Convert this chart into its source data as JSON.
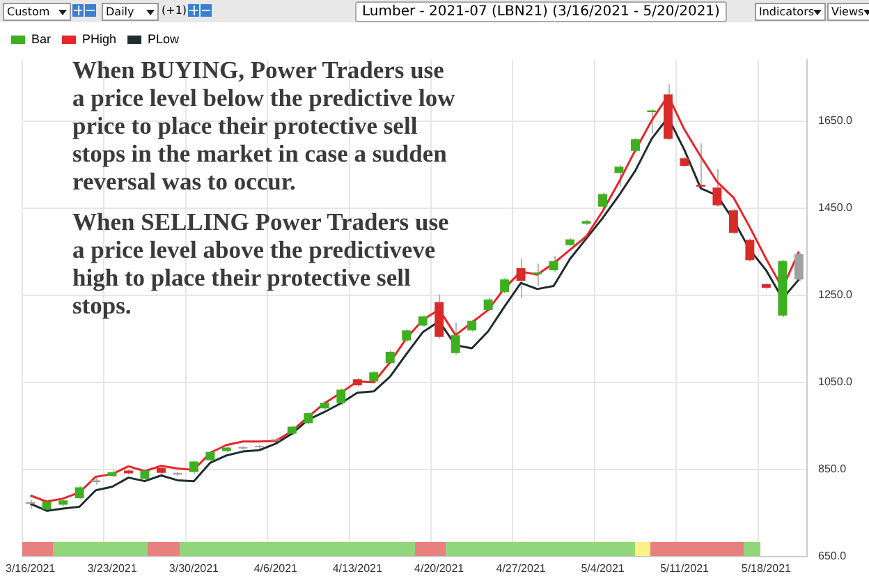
{
  "chart_data": {
    "type": "candlestick",
    "title": "Lumber - 2021-07 (LBN21) (3/16/2021 - 5/20/2021)",
    "annotations": [
      "When BUYING, Power Traders use a price level below the predictive low price to place their protective sell stops in the market in case a sudden reversal was to occur.",
      "When SELLING Power Traders use a price level above the predictiveve high to place their protective sell stops.",
      "Custom",
      "Daily",
      "(+1)",
      "Indicators",
      "Views"
    ],
    "categories": [
      "3/16/2021",
      null,
      null,
      null,
      null,
      "3/23/2021",
      null,
      null,
      null,
      null,
      "3/30/2021",
      null,
      null,
      null,
      null,
      "4/6/2021",
      null,
      null,
      null,
      null,
      "4/13/2021",
      null,
      null,
      null,
      null,
      "4/20/2021",
      null,
      null,
      null,
      null,
      "4/27/2021",
      null,
      null,
      null,
      null,
      "5/4/2021",
      null,
      null,
      null,
      null,
      "5/11/2021",
      null,
      null,
      null,
      null,
      "5/18/2021",
      null,
      null
    ],
    "series": [
      {
        "name": "Bar",
        "type": "candlestick",
        "colors": [
          "#a0a0a0",
          "#3cb01e",
          "#3cb01e",
          "#3cb01e",
          "#a0a0a0",
          "#3cb01e",
          "#d92a2a",
          "#3cb01e",
          "#d92a2a",
          "#a0a0a0",
          "#3cb01e",
          "#3cb01e",
          "#3cb01e",
          "#a0a0a0",
          "#a0a0a0",
          "#a0a0a0",
          "#3cb01e",
          "#3cb01e",
          "#3cb01e",
          "#3cb01e",
          "#d92a2a",
          "#3cb01e",
          "#3cb01e",
          "#3cb01e",
          "#3cb01e",
          "#d92a2a",
          "#3cb01e",
          "#3cb01e",
          "#3cb01e",
          "#3cb01e",
          "#d92a2a",
          "#3cb01e",
          "#3cb01e",
          "#3cb01e",
          "#3cb01e",
          "#3cb01e",
          "#3cb01e",
          "#3cb01e",
          "#3cb01e",
          "#d92a2a",
          "#d92a2a",
          "#d92a2a",
          "#d92a2a",
          "#d92a2a",
          "#d92a2a",
          "#d92a2a",
          "#3cb01e",
          "#a0a0a0"
        ],
        "ohlc": [
          [
            771,
            780,
            760,
            775
          ],
          [
            758,
            780,
            752,
            776
          ],
          [
            769,
            783,
            765,
            779
          ],
          [
            784,
            812,
            782,
            809
          ],
          [
            821,
            835,
            815,
            825
          ],
          [
            835,
            846,
            832,
            843
          ],
          [
            847,
            850,
            838,
            841
          ],
          [
            828,
            850,
            825,
            847
          ],
          [
            853,
            856,
            838,
            842
          ],
          [
            838,
            843,
            835,
            842
          ],
          [
            844,
            870,
            840,
            868
          ],
          [
            871,
            893,
            868,
            890
          ],
          [
            892,
            903,
            889,
            900
          ],
          [
            898,
            903,
            895,
            901
          ],
          [
            901,
            907,
            897,
            904
          ],
          [
            916,
            923,
            911,
            919
          ],
          [
            932,
            950,
            929,
            948
          ],
          [
            956,
            982,
            953,
            979
          ],
          [
            990,
            1006,
            987,
            1003
          ],
          [
            1002,
            1036,
            998,
            1033
          ],
          [
            1057,
            1060,
            1040,
            1043
          ],
          [
            1052,
            1076,
            1049,
            1073
          ],
          [
            1094,
            1123,
            1091,
            1120
          ],
          [
            1146,
            1172,
            1143,
            1169
          ],
          [
            1180,
            1204,
            1177,
            1201
          ],
          [
            1234,
            1252,
            1150,
            1154
          ],
          [
            1117,
            1187,
            1114,
            1158
          ],
          [
            1169,
            1194,
            1166,
            1191
          ],
          [
            1216,
            1243,
            1213,
            1240
          ],
          [
            1257,
            1289,
            1254,
            1286
          ],
          [
            1312,
            1335,
            1243,
            1283
          ],
          [
            1298,
            1322,
            1271,
            1302
          ],
          [
            1307,
            1340,
            1304,
            1328
          ],
          [
            1365,
            1381,
            1362,
            1378
          ],
          [
            1414,
            1423,
            1411,
            1420
          ],
          [
            1453,
            1485,
            1450,
            1482
          ],
          [
            1531,
            1548,
            1500,
            1545
          ],
          [
            1581,
            1611,
            1578,
            1608
          ],
          [
            1670,
            1677,
            1622,
            1674
          ],
          [
            1711,
            1734,
            1606,
            1609
          ],
          [
            1564,
            1567,
            1544,
            1547
          ],
          [
            1503,
            1599,
            1495,
            1499
          ],
          [
            1497,
            1540,
            1453,
            1456
          ],
          [
            1445,
            1448,
            1390,
            1393
          ],
          [
            1377,
            1380,
            1327,
            1330
          ],
          [
            1275,
            1278,
            1264,
            1267
          ],
          [
            1203,
            1331,
            1200,
            1328
          ],
          [
            1286,
            1347,
            1283,
            1344
          ]
        ]
      },
      {
        "name": "PHigh",
        "type": "line",
        "color": "#e8262a",
        "values": [
          790,
          776,
          783,
          797,
          833,
          839,
          857,
          846,
          858,
          852,
          849,
          888,
          906,
          914,
          914,
          915,
          938,
          971,
          1002,
          1026,
          1052,
          1050,
          1096,
          1151,
          1193,
          1217,
          1158,
          1187,
          1216,
          1266,
          1304,
          1297,
          1323,
          1354,
          1385,
          1443,
          1510,
          1583,
          1651,
          1708,
          1630,
          1568,
          1510,
          1474,
          1406,
          1333,
          1266,
          1350
        ]
      },
      {
        "name": "PLow",
        "type": "line",
        "color": "#1e2e2e",
        "values": [
          771,
          755,
          760,
          764,
          802,
          810,
          831,
          823,
          836,
          825,
          823,
          865,
          882,
          891,
          894,
          909,
          932,
          964,
          982,
          1002,
          1026,
          1029,
          1063,
          1115,
          1165,
          1190,
          1135,
          1128,
          1167,
          1224,
          1278,
          1264,
          1271,
          1333,
          1380,
          1427,
          1479,
          1536,
          1609,
          1658,
          1583,
          1495,
          1479,
          1422,
          1354,
          1307,
          1242,
          1286
        ]
      }
    ],
    "ylim": [
      650,
      1790
    ],
    "yticks": [
      {
        "value": 650,
        "label": "650.0"
      },
      {
        "value": 850,
        "label": "850.0"
      },
      {
        "value": 1050,
        "label": "1050.0"
      },
      {
        "value": 1250,
        "label": "1250.0"
      },
      {
        "value": 1450,
        "label": "1450.0"
      },
      {
        "value": 1650,
        "label": "1650.0"
      }
    ],
    "grid": true,
    "legend": "top left"
  }
}
